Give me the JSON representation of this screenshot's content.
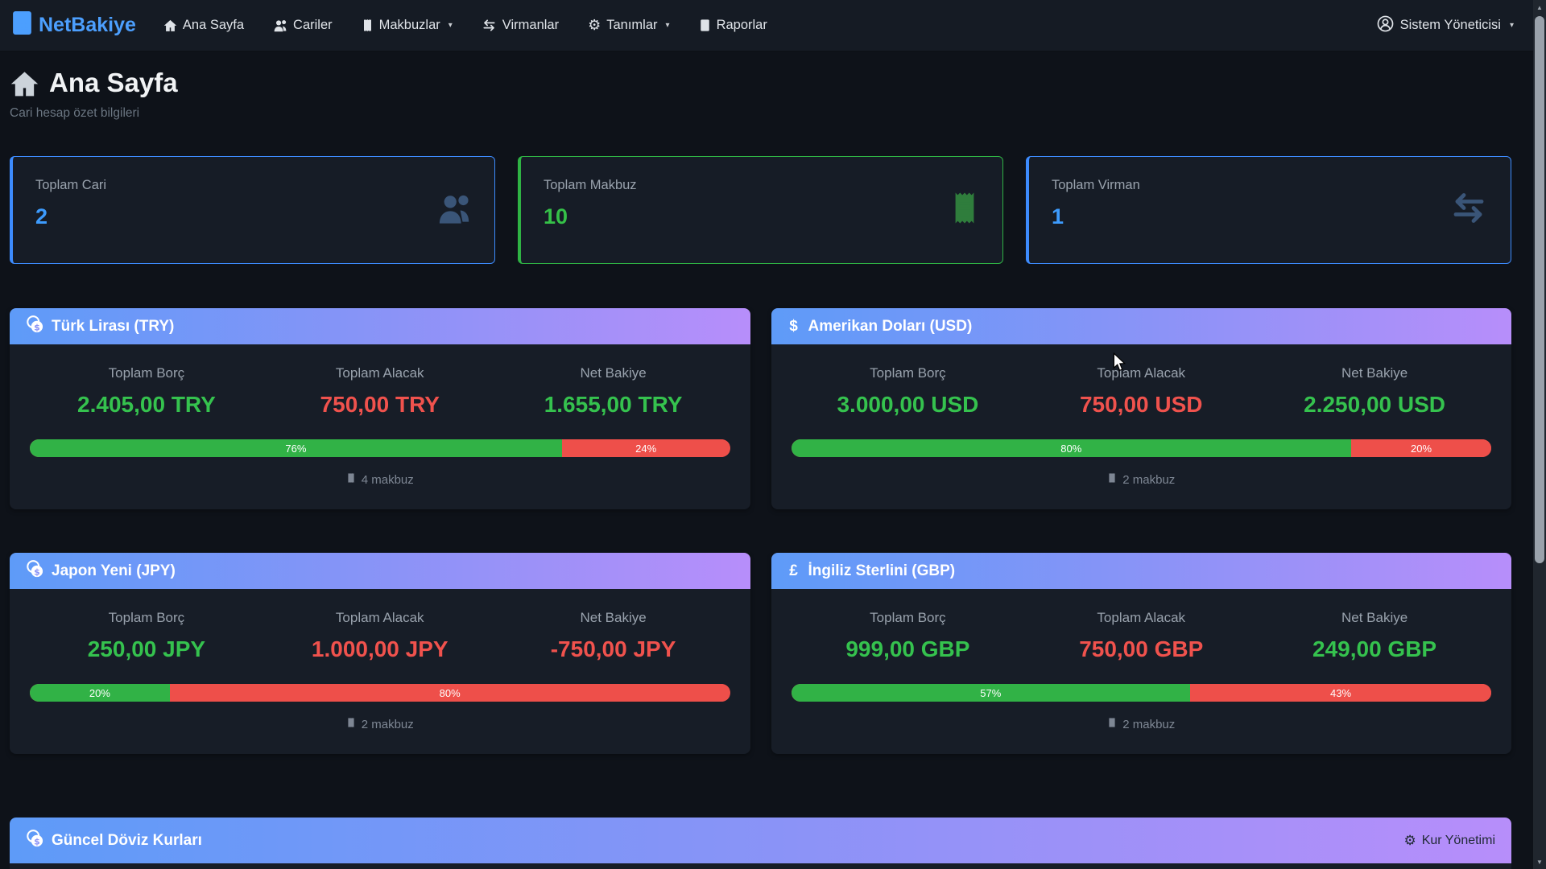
{
  "navbar": {
    "brand": "NetBakiye",
    "items": [
      {
        "label": "Ana Sayfa",
        "icon": "home-icon"
      },
      {
        "label": "Cariler",
        "icon": "people-icon"
      },
      {
        "label": "Makbuzlar",
        "icon": "receipt-icon",
        "caret": "▾"
      },
      {
        "label": "Virmanlar",
        "icon": "exchange-icon"
      },
      {
        "label": "Tanımlar",
        "icon": "gear-icon",
        "caret": "▾",
        "gear_glyph": "⚙"
      },
      {
        "label": "Raporlar",
        "icon": "report-icon"
      }
    ],
    "user": {
      "label": "Sistem Yöneticisi",
      "icon": "person-circle-icon",
      "caret": "▾"
    }
  },
  "page_header": {
    "title": "Ana Sayfa",
    "subtitle": "Cari hesap özet bilgileri"
  },
  "stat_cards": [
    {
      "label": "Toplam Cari",
      "value": "2",
      "accent": "#3d8bfd",
      "icon": "people-icon"
    },
    {
      "label": "Toplam Makbuz",
      "value": "10",
      "accent": "#2fb344",
      "icon": "receipt-icon"
    },
    {
      "label": "Toplam Virman",
      "value": "1",
      "accent": "#3d8bfd",
      "icon": "exchange-icon"
    }
  ],
  "labels": {
    "debt": "Toplam Borç",
    "credit": "Toplam Alacak",
    "net": "Net Bakiye"
  },
  "colors": {
    "green": "#35c24e",
    "red": "#f0524d",
    "blue": "#3d9bfd",
    "bar_green": "#31b246",
    "bar_red": "#ee4f4a",
    "header_gradient": [
      "#5e9bf8",
      "#b78efa"
    ]
  },
  "currency_cards": [
    {
      "title": "Türk Lirası (TRY)",
      "icon": "coins-icon",
      "symbol": "",
      "debt": "2.405,00 TRY",
      "debt_color": "#35c24e",
      "credit": "750,00 TRY",
      "credit_color": "#f0524d",
      "net": "1.655,00 TRY",
      "net_color": "#35c24e",
      "bar": {
        "green": 76,
        "red": 24,
        "green_label": "76%",
        "red_label": "24%"
      },
      "receipts": "4 makbuz"
    },
    {
      "title": "Amerikan Doları (USD)",
      "icon": "dollar-icon",
      "symbol": "$",
      "debt": "3.000,00 USD",
      "debt_color": "#35c24e",
      "credit": "750,00 USD",
      "credit_color": "#f0524d",
      "net": "2.250,00 USD",
      "net_color": "#35c24e",
      "bar": {
        "green": 80,
        "red": 20,
        "green_label": "80%",
        "red_label": "20%"
      },
      "receipts": "2 makbuz"
    },
    {
      "title": "Japon Yeni (JPY)",
      "icon": "coins-icon",
      "symbol": "",
      "debt": "250,00 JPY",
      "debt_color": "#35c24e",
      "credit": "1.000,00 JPY",
      "credit_color": "#f0524d",
      "net": "-750,00 JPY",
      "net_color": "#f0524d",
      "bar": {
        "green": 20,
        "red": 80,
        "green_label": "20%",
        "red_label": "80%"
      },
      "receipts": "2 makbuz"
    },
    {
      "title": "İngiliz Sterlini (GBP)",
      "icon": "pound-icon",
      "symbol": "£",
      "debt": "999,00 GBP",
      "debt_color": "#35c24e",
      "credit": "750,00 GBP",
      "credit_color": "#f0524d",
      "net": "249,00 GBP",
      "net_color": "#35c24e",
      "bar": {
        "green": 57,
        "red": 43,
        "green_label": "57%",
        "red_label": "43%"
      },
      "receipts": "2 makbuz"
    }
  ],
  "fx_panel": {
    "title": "Güncel Döviz Kurları",
    "icon": "coins-icon",
    "action_label": "Kur Yönetimi",
    "action_icon": "gear-icon",
    "gear_glyph": "⚙"
  }
}
